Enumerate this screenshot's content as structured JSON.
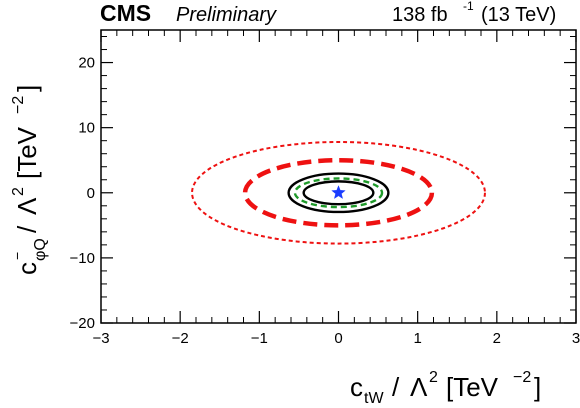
{
  "header": {
    "experiment": "CMS",
    "status": "Preliminary",
    "lumi": "138 fb",
    "lumi_exp": "-1",
    "energy": "(13 TeV)"
  },
  "chart_data": {
    "type": "scatter",
    "title": "",
    "xlabel": "c_tW / Λ² [TeV⁻²]",
    "ylabel": "c⁻_φQ / Λ² [TeV⁻²]",
    "xlim": [
      -3,
      3
    ],
    "ylim": [
      -20,
      25
    ],
    "x_ticks": [
      -3,
      -2,
      -1,
      0,
      1,
      2,
      3
    ],
    "y_ticks": [
      -20,
      -10,
      0,
      10,
      20
    ],
    "grid": false,
    "best_fit": {
      "x": 0.0,
      "y": 0.0,
      "marker": "star",
      "color": "#1a3cff"
    },
    "contours": [
      {
        "kind": "expected-68",
        "center": [
          0.0,
          0.0
        ],
        "rx": 0.55,
        "ry": 2.2,
        "color": "#1f9a2a",
        "style": "dashed"
      },
      {
        "kind": "observed-68",
        "center": [
          0.0,
          0.0
        ],
        "rx": 0.44,
        "ry": 1.75,
        "color": "#000000",
        "style": "solid"
      },
      {
        "kind": "observed-95",
        "center": [
          0.0,
          0.0
        ],
        "rx": 0.63,
        "ry": 2.95,
        "color": "#000000",
        "style": "solid"
      },
      {
        "kind": "expected-95-a",
        "center": [
          0.0,
          0.0
        ],
        "rx": 1.18,
        "ry": 5.0,
        "color": "#ee1111",
        "style": "dashed-thick"
      },
      {
        "kind": "expected-95-b",
        "center": [
          0.0,
          0.0
        ],
        "rx": 1.85,
        "ry": 7.8,
        "color": "#ee1111",
        "style": "dotted"
      }
    ]
  }
}
